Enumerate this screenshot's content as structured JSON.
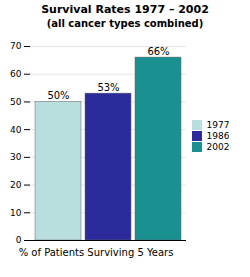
{
  "chart_data": {
    "type": "bar",
    "title": "Survival Rates  1977 – 2002",
    "subtitle": "(all cancer types combined)",
    "categories": [
      "1977",
      "1986",
      "2002"
    ],
    "values": [
      50,
      53,
      66
    ],
    "value_labels": [
      "50%",
      "53%",
      "66%"
    ],
    "colors": [
      "#b8dede",
      "#2b2b9b",
      "#1a9090"
    ],
    "xlabel": "% of Patients Surviving 5 Years",
    "ylim": [
      0,
      70
    ],
    "yticks": [
      0,
      10,
      20,
      30,
      40,
      50,
      60,
      70
    ],
    "grid": true,
    "data_labels": true,
    "legend": "right",
    "tick_labels": "y"
  }
}
